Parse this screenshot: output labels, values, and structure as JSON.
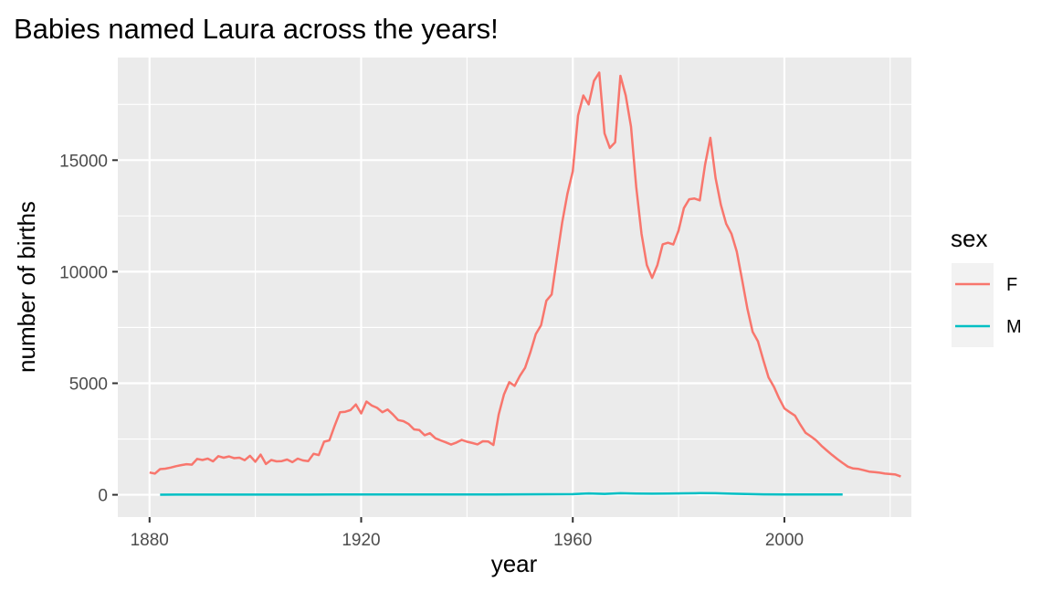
{
  "chart_data": {
    "type": "line",
    "title": "Babies named Laura across the years!",
    "xlabel": "year",
    "ylabel": "number of births",
    "xlim": [
      1874,
      2024
    ],
    "ylim": [
      -1000,
      19600
    ],
    "xticks": [
      1880,
      1920,
      1960,
      2000
    ],
    "xticks_minor": [
      1900,
      1940,
      1980,
      2020
    ],
    "yticks": [
      0,
      5000,
      10000,
      15000
    ],
    "yticks_minor": [
      2500,
      7500,
      12500,
      17500
    ],
    "xtick_labels": [
      "1880",
      "1920",
      "1960",
      "2000"
    ],
    "ytick_labels": [
      "0",
      "5000",
      "10000",
      "15000"
    ],
    "panel_background": "#ebebeb",
    "grid_color": "#ffffff",
    "legend": {
      "title": "sex",
      "position": "right",
      "entries": [
        "F",
        "M"
      ]
    },
    "series": [
      {
        "name": "F",
        "color": "#f8766d",
        "points": [
          [
            1880,
            1000
          ],
          [
            1881,
            950
          ],
          [
            1882,
            1150
          ],
          [
            1883,
            1170
          ],
          [
            1884,
            1220
          ],
          [
            1885,
            1280
          ],
          [
            1886,
            1330
          ],
          [
            1887,
            1370
          ],
          [
            1888,
            1350
          ],
          [
            1889,
            1610
          ],
          [
            1890,
            1560
          ],
          [
            1891,
            1620
          ],
          [
            1892,
            1500
          ],
          [
            1893,
            1730
          ],
          [
            1894,
            1660
          ],
          [
            1895,
            1720
          ],
          [
            1896,
            1640
          ],
          [
            1897,
            1660
          ],
          [
            1898,
            1550
          ],
          [
            1899,
            1750
          ],
          [
            1900,
            1480
          ],
          [
            1901,
            1800
          ],
          [
            1902,
            1380
          ],
          [
            1903,
            1560
          ],
          [
            1904,
            1500
          ],
          [
            1905,
            1510
          ],
          [
            1906,
            1580
          ],
          [
            1907,
            1460
          ],
          [
            1908,
            1620
          ],
          [
            1909,
            1540
          ],
          [
            1910,
            1510
          ],
          [
            1911,
            1840
          ],
          [
            1912,
            1780
          ],
          [
            1913,
            2380
          ],
          [
            1914,
            2440
          ],
          [
            1915,
            3100
          ],
          [
            1916,
            3700
          ],
          [
            1917,
            3720
          ],
          [
            1918,
            3800
          ],
          [
            1919,
            4050
          ],
          [
            1920,
            3650
          ],
          [
            1921,
            4180
          ],
          [
            1922,
            4000
          ],
          [
            1923,
            3900
          ],
          [
            1924,
            3700
          ],
          [
            1925,
            3820
          ],
          [
            1926,
            3600
          ],
          [
            1927,
            3350
          ],
          [
            1928,
            3300
          ],
          [
            1929,
            3170
          ],
          [
            1930,
            2930
          ],
          [
            1931,
            2900
          ],
          [
            1932,
            2670
          ],
          [
            1933,
            2760
          ],
          [
            1934,
            2540
          ],
          [
            1935,
            2440
          ],
          [
            1936,
            2350
          ],
          [
            1937,
            2250
          ],
          [
            1938,
            2340
          ],
          [
            1939,
            2460
          ],
          [
            1940,
            2380
          ],
          [
            1941,
            2320
          ],
          [
            1942,
            2260
          ],
          [
            1943,
            2400
          ],
          [
            1944,
            2390
          ],
          [
            1945,
            2230
          ],
          [
            1946,
            3600
          ],
          [
            1947,
            4500
          ],
          [
            1948,
            5050
          ],
          [
            1949,
            4880
          ],
          [
            1950,
            5330
          ],
          [
            1951,
            5700
          ],
          [
            1952,
            6400
          ],
          [
            1953,
            7200
          ],
          [
            1954,
            7600
          ],
          [
            1955,
            8700
          ],
          [
            1956,
            8980
          ],
          [
            1957,
            10600
          ],
          [
            1958,
            12200
          ],
          [
            1959,
            13500
          ],
          [
            1960,
            14500
          ],
          [
            1961,
            17000
          ],
          [
            1962,
            17900
          ],
          [
            1963,
            17500
          ],
          [
            1964,
            18550
          ],
          [
            1965,
            18930
          ],
          [
            1966,
            16200
          ],
          [
            1967,
            15550
          ],
          [
            1968,
            15800
          ],
          [
            1969,
            18780
          ],
          [
            1970,
            17900
          ],
          [
            1971,
            16500
          ],
          [
            1972,
            13800
          ],
          [
            1973,
            11700
          ],
          [
            1974,
            10300
          ],
          [
            1975,
            9720
          ],
          [
            1976,
            10300
          ],
          [
            1977,
            11230
          ],
          [
            1978,
            11300
          ],
          [
            1979,
            11220
          ],
          [
            1980,
            11850
          ],
          [
            1981,
            12850
          ],
          [
            1982,
            13250
          ],
          [
            1983,
            13280
          ],
          [
            1984,
            13200
          ],
          [
            1985,
            14800
          ],
          [
            1986,
            16000
          ],
          [
            1987,
            14200
          ],
          [
            1988,
            13000
          ],
          [
            1989,
            12150
          ],
          [
            1990,
            11700
          ],
          [
            1991,
            10900
          ],
          [
            1992,
            9650
          ],
          [
            1993,
            8350
          ],
          [
            1994,
            7300
          ],
          [
            1995,
            6880
          ],
          [
            1996,
            6050
          ],
          [
            1997,
            5260
          ],
          [
            1998,
            4850
          ],
          [
            1999,
            4320
          ],
          [
            2000,
            3870
          ],
          [
            2001,
            3700
          ],
          [
            2002,
            3550
          ],
          [
            2003,
            3150
          ],
          [
            2004,
            2780
          ],
          [
            2005,
            2620
          ],
          [
            2006,
            2440
          ],
          [
            2007,
            2200
          ],
          [
            2008,
            1990
          ],
          [
            2009,
            1790
          ],
          [
            2010,
            1600
          ],
          [
            2011,
            1430
          ],
          [
            2012,
            1260
          ],
          [
            2013,
            1180
          ],
          [
            2014,
            1160
          ],
          [
            2015,
            1100
          ],
          [
            2016,
            1040
          ],
          [
            2017,
            1020
          ],
          [
            2018,
            990
          ],
          [
            2019,
            950
          ],
          [
            2020,
            930
          ],
          [
            2021,
            910
          ],
          [
            2022,
            820
          ]
        ]
      },
      {
        "name": "M",
        "color": "#00bfc4",
        "points": [
          [
            1882,
            5
          ],
          [
            1885,
            6
          ],
          [
            1890,
            7
          ],
          [
            1895,
            6
          ],
          [
            1900,
            6
          ],
          [
            1905,
            7
          ],
          [
            1910,
            8
          ],
          [
            1915,
            12
          ],
          [
            1920,
            15
          ],
          [
            1925,
            14
          ],
          [
            1930,
            15
          ],
          [
            1935,
            14
          ],
          [
            1940,
            13
          ],
          [
            1945,
            14
          ],
          [
            1950,
            18
          ],
          [
            1955,
            22
          ],
          [
            1960,
            30
          ],
          [
            1963,
            60
          ],
          [
            1966,
            40
          ],
          [
            1969,
            70
          ],
          [
            1972,
            55
          ],
          [
            1975,
            48
          ],
          [
            1978,
            55
          ],
          [
            1981,
            65
          ],
          [
            1984,
            72
          ],
          [
            1987,
            70
          ],
          [
            1990,
            50
          ],
          [
            1993,
            35
          ],
          [
            1996,
            20
          ],
          [
            2000,
            15
          ],
          [
            2005,
            12
          ],
          [
            2011,
            10
          ]
        ]
      }
    ]
  }
}
